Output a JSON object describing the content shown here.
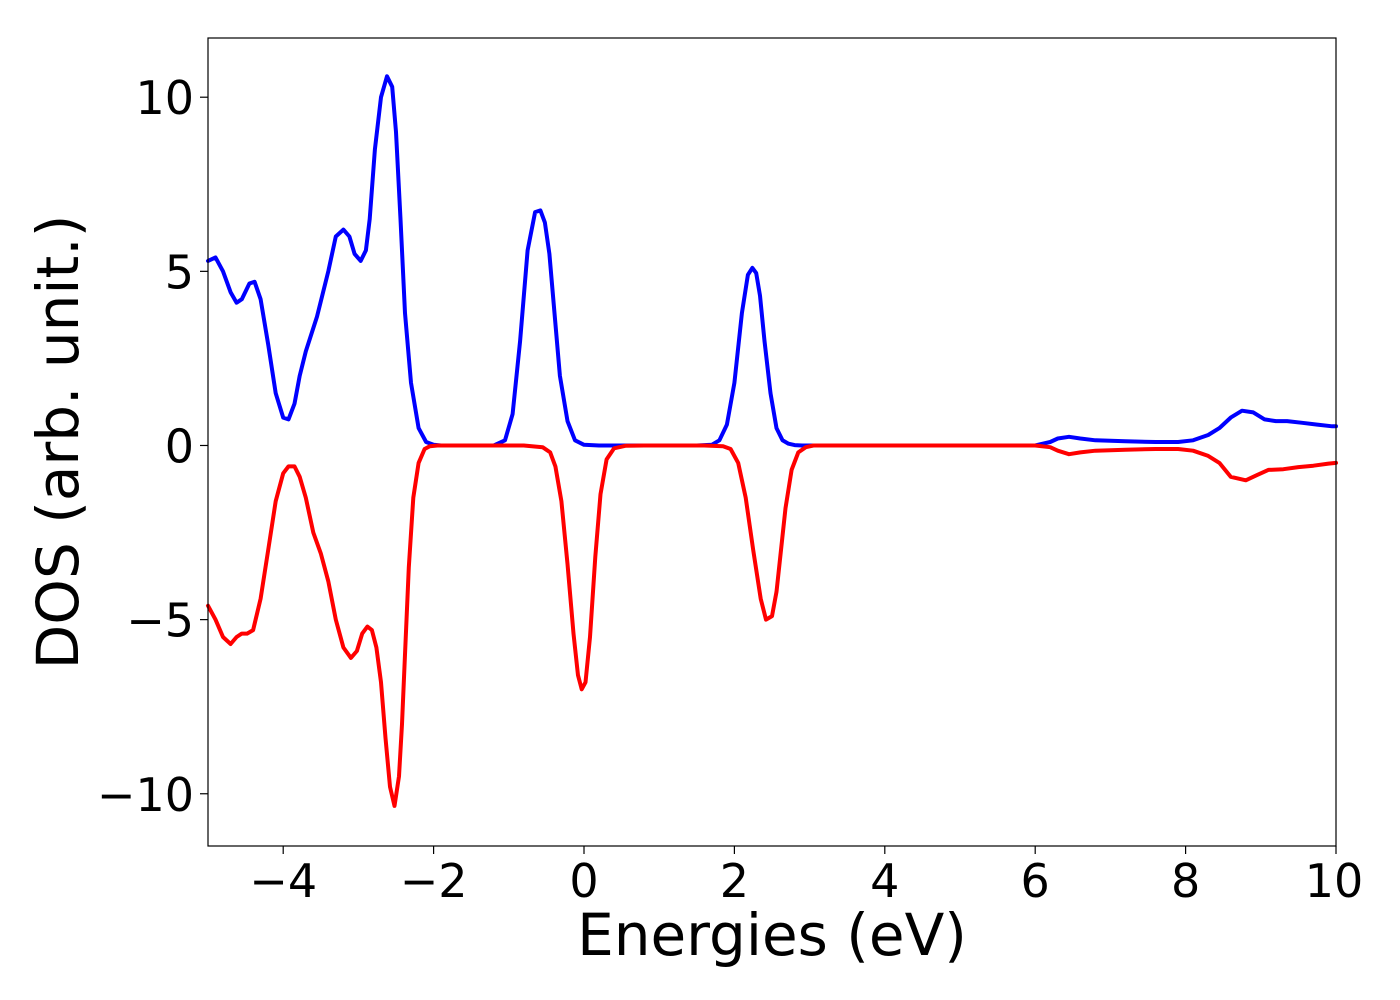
{
  "chart_data": {
    "type": "line",
    "title": "",
    "xlabel": "Energies (eV)",
    "ylabel": "DOS (arb. unit.)",
    "xlim": [
      -5,
      10
    ],
    "ylim": [
      -11.5,
      11.7
    ],
    "grid": false,
    "legend": "none",
    "x_ticks": [
      -4,
      -2,
      0,
      2,
      4,
      6,
      8,
      10
    ],
    "x_tick_labels": [
      "−4",
      "−2",
      "0",
      "2",
      "4",
      "6",
      "8",
      "10"
    ],
    "y_ticks": [
      10,
      5,
      0,
      -5,
      -10
    ],
    "y_tick_labels": [
      "10",
      "5",
      "0",
      "−5",
      "−10"
    ],
    "series": [
      {
        "color": "#0000ff",
        "x": [
          -5.0,
          -4.9,
          -4.8,
          -4.7,
          -4.62,
          -4.55,
          -4.45,
          -4.38,
          -4.3,
          -4.2,
          -4.1,
          -4.0,
          -3.93,
          -3.85,
          -3.78,
          -3.7,
          -3.55,
          -3.4,
          -3.3,
          -3.2,
          -3.12,
          -3.05,
          -2.97,
          -2.9,
          -2.85,
          -2.78,
          -2.7,
          -2.62,
          -2.55,
          -2.5,
          -2.44,
          -2.38,
          -2.3,
          -2.2,
          -2.1,
          -2.0,
          -1.9,
          -1.8,
          -1.5,
          -1.2,
          -1.05,
          -0.95,
          -0.85,
          -0.75,
          -0.65,
          -0.58,
          -0.52,
          -0.46,
          -0.4,
          -0.32,
          -0.22,
          -0.12,
          0.0,
          0.2,
          0.5,
          1.0,
          1.5,
          1.7,
          1.8,
          1.9,
          2.0,
          2.1,
          2.18,
          2.24,
          2.29,
          2.34,
          2.4,
          2.48,
          2.56,
          2.64,
          2.72,
          2.8,
          2.9,
          3.1,
          3.5,
          4.0,
          5.0,
          6.0,
          6.2,
          6.3,
          6.45,
          6.6,
          6.8,
          7.2,
          7.6,
          7.9,
          8.1,
          8.3,
          8.45,
          8.6,
          8.75,
          8.9,
          9.05,
          9.2,
          9.35,
          9.55,
          9.75,
          9.95,
          10.0
        ],
        "y": [
          5.3,
          5.4,
          5.0,
          4.4,
          4.1,
          4.2,
          4.65,
          4.7,
          4.2,
          2.9,
          1.5,
          0.8,
          0.75,
          1.2,
          2.0,
          2.7,
          3.7,
          5.0,
          6.0,
          6.2,
          6.0,
          5.5,
          5.3,
          5.6,
          6.5,
          8.5,
          10.0,
          10.6,
          10.3,
          9.0,
          6.5,
          3.8,
          1.8,
          0.5,
          0.1,
          0.02,
          0.0,
          0.0,
          0.0,
          0.0,
          0.15,
          0.9,
          3.0,
          5.6,
          6.7,
          6.75,
          6.4,
          5.5,
          4.0,
          2.0,
          0.7,
          0.15,
          0.02,
          0.0,
          0.0,
          0.0,
          0.0,
          0.02,
          0.15,
          0.6,
          1.8,
          3.8,
          4.9,
          5.1,
          4.95,
          4.3,
          3.0,
          1.5,
          0.5,
          0.15,
          0.05,
          0.01,
          0.0,
          0.0,
          0.0,
          0.0,
          0.0,
          0.0,
          0.1,
          0.2,
          0.25,
          0.2,
          0.15,
          0.12,
          0.1,
          0.1,
          0.15,
          0.3,
          0.5,
          0.8,
          1.0,
          0.95,
          0.75,
          0.7,
          0.7,
          0.65,
          0.6,
          0.55,
          0.55
        ]
      },
      {
        "color": "#ff0000",
        "x": [
          -5.0,
          -4.9,
          -4.8,
          -4.7,
          -4.62,
          -4.55,
          -4.48,
          -4.4,
          -4.3,
          -4.2,
          -4.1,
          -4.0,
          -3.93,
          -3.85,
          -3.78,
          -3.7,
          -3.6,
          -3.5,
          -3.4,
          -3.3,
          -3.2,
          -3.1,
          -3.02,
          -2.95,
          -2.88,
          -2.82,
          -2.76,
          -2.7,
          -2.64,
          -2.58,
          -2.52,
          -2.46,
          -2.42,
          -2.38,
          -2.33,
          -2.27,
          -2.2,
          -2.12,
          -2.05,
          -1.95,
          -1.85,
          -1.7,
          -1.5,
          -1.2,
          -0.8,
          -0.55,
          -0.45,
          -0.38,
          -0.3,
          -0.22,
          -0.14,
          -0.08,
          -0.03,
          0.02,
          0.08,
          0.15,
          0.22,
          0.3,
          0.4,
          0.55,
          0.8,
          1.2,
          1.6,
          1.85,
          1.95,
          2.05,
          2.15,
          2.25,
          2.35,
          2.42,
          2.5,
          2.56,
          2.62,
          2.68,
          2.76,
          2.85,
          2.95,
          3.05,
          3.3,
          4.0,
          5.0,
          6.0,
          6.2,
          6.3,
          6.45,
          6.6,
          6.8,
          7.2,
          7.6,
          7.9,
          8.1,
          8.3,
          8.45,
          8.6,
          8.8,
          8.95,
          9.1,
          9.3,
          9.5,
          9.7,
          9.9,
          10.0
        ],
        "y": [
          -4.6,
          -5.0,
          -5.5,
          -5.7,
          -5.5,
          -5.4,
          -5.4,
          -5.3,
          -4.4,
          -3.0,
          -1.6,
          -0.8,
          -0.6,
          -0.6,
          -0.9,
          -1.5,
          -2.5,
          -3.1,
          -3.9,
          -5.0,
          -5.8,
          -6.1,
          -5.9,
          -5.4,
          -5.2,
          -5.3,
          -5.8,
          -6.8,
          -8.4,
          -9.8,
          -10.35,
          -9.5,
          -8.0,
          -6.0,
          -3.5,
          -1.5,
          -0.5,
          -0.1,
          -0.02,
          0.0,
          0.0,
          0.0,
          0.0,
          0.0,
          0.0,
          -0.05,
          -0.2,
          -0.6,
          -1.6,
          -3.4,
          -5.4,
          -6.6,
          -7.0,
          -6.8,
          -5.5,
          -3.2,
          -1.4,
          -0.4,
          -0.08,
          -0.01,
          0.0,
          0.0,
          0.0,
          -0.02,
          -0.1,
          -0.5,
          -1.5,
          -3.0,
          -4.4,
          -5.0,
          -4.9,
          -4.2,
          -3.0,
          -1.8,
          -0.7,
          -0.2,
          -0.05,
          0.0,
          0.0,
          0.0,
          0.0,
          0.0,
          -0.05,
          -0.15,
          -0.25,
          -0.2,
          -0.15,
          -0.12,
          -0.1,
          -0.1,
          -0.15,
          -0.3,
          -0.5,
          -0.9,
          -1.0,
          -0.85,
          -0.7,
          -0.68,
          -0.62,
          -0.58,
          -0.52,
          -0.5
        ]
      }
    ]
  }
}
